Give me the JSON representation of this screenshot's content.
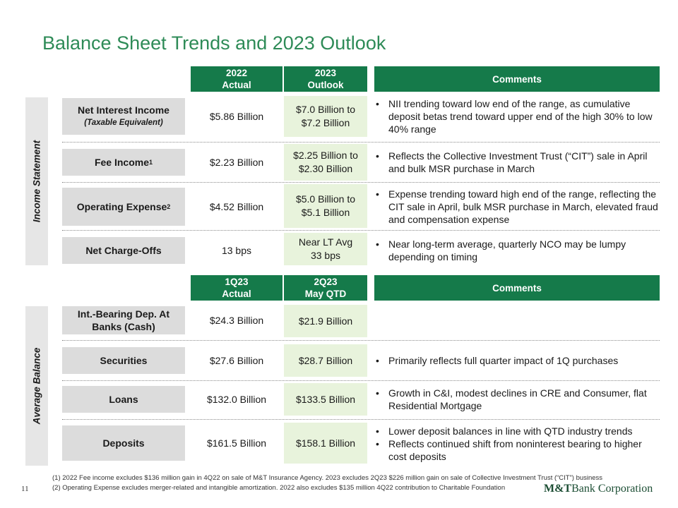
{
  "title": "Balance Sheet Trends and 2023 Outlook",
  "section1": {
    "side_label": "Income Statement",
    "headers": {
      "col1_line1": "2022",
      "col1_line2": "Actual",
      "col2_line1": "2023",
      "col2_line2": "Outlook",
      "comments": "Comments"
    },
    "rows": [
      {
        "label": "Net Interest Income",
        "sublabel": "(Taxable Equivalent)",
        "actual": "$5.86 Billion",
        "outlook_line1": "$7.0 Billion to",
        "outlook_line2": "$7.2 Billion",
        "comments": [
          "NII trending toward low end of the range, as cumulative deposit betas trend toward upper end of the high 30% to low 40% range"
        ]
      },
      {
        "label": "Fee Income",
        "sup": "1",
        "actual": "$2.23 Billion",
        "outlook_line1": "$2.25 Billion to",
        "outlook_line2": "$2.30 Billion",
        "comments": [
          "Reflects the Collective Investment Trust (“CIT”) sale in April and bulk MSR purchase in March"
        ]
      },
      {
        "label": "Operating Expense",
        "sup": "2",
        "actual": "$4.52 Billion",
        "outlook_line1": "$5.0 Billion to",
        "outlook_line2": "$5.1 Billion",
        "comments": [
          "Expense trending toward high end of the range, reflecting the CIT sale in April, bulk MSR purchase in March, elevated fraud and compensation expense"
        ]
      },
      {
        "label": "Net Charge-Offs",
        "actual": "13 bps",
        "outlook_line1": "Near LT Avg",
        "outlook_line2": "33 bps",
        "comments": [
          "Near long-term average, quarterly NCO may be lumpy depending on timing"
        ]
      }
    ]
  },
  "section2": {
    "side_label": "Average Balance",
    "headers": {
      "col1_line1": "1Q23",
      "col1_line2": "Actual",
      "col2_line1": "2Q23",
      "col2_line2": "May QTD",
      "comments": "Comments"
    },
    "rows": [
      {
        "label_line1": "Int.-Bearing Dep. At",
        "label_line2": "Banks (Cash)",
        "actual": "$24.3 Billion",
        "outlook": "$21.9 Billion"
      },
      {
        "label": "Securities",
        "actual": "$27.6 Billion",
        "outlook": "$28.7 Billion",
        "comments": [
          "Primarily reflects full quarter impact of 1Q purchases"
        ]
      },
      {
        "label": "Loans",
        "actual": "$132.0 Billion",
        "outlook": "$133.5 Billion",
        "comments": [
          "Growth in C&I, modest declines in CRE and Consumer, flat Residential Mortgage"
        ]
      },
      {
        "label": "Deposits",
        "actual": "$161.5 Billion",
        "outlook": "$158.1 Billion",
        "comments": [
          "Lower deposit balances in line with QTD industry trends",
          "Reflects continued shift from noninterest bearing to higher cost deposits"
        ]
      }
    ]
  },
  "bullet_char": "•",
  "footnotes": [
    "(1) 2022 Fee income excludes $136 million gain in 4Q22 on sale of M&T Insurance Agency. 2023 excludes 2Q23 $226 million gain on sale of Collective Investment Trust (“CIT”) business",
    "(2) Operating Expense excludes merger-related and intangible amortization. 2022 also excludes $135 million 4Q22 contribution to Charitable Foundation"
  ],
  "page_number": "11",
  "logo": {
    "brand": "M&T",
    "rest": "Bank Corporation"
  },
  "colors": {
    "header_green": "#157a4a",
    "title_green": "#2e8b57",
    "outlook_fill": "#e8f3dc",
    "label_fill": "#dcdcdc"
  }
}
